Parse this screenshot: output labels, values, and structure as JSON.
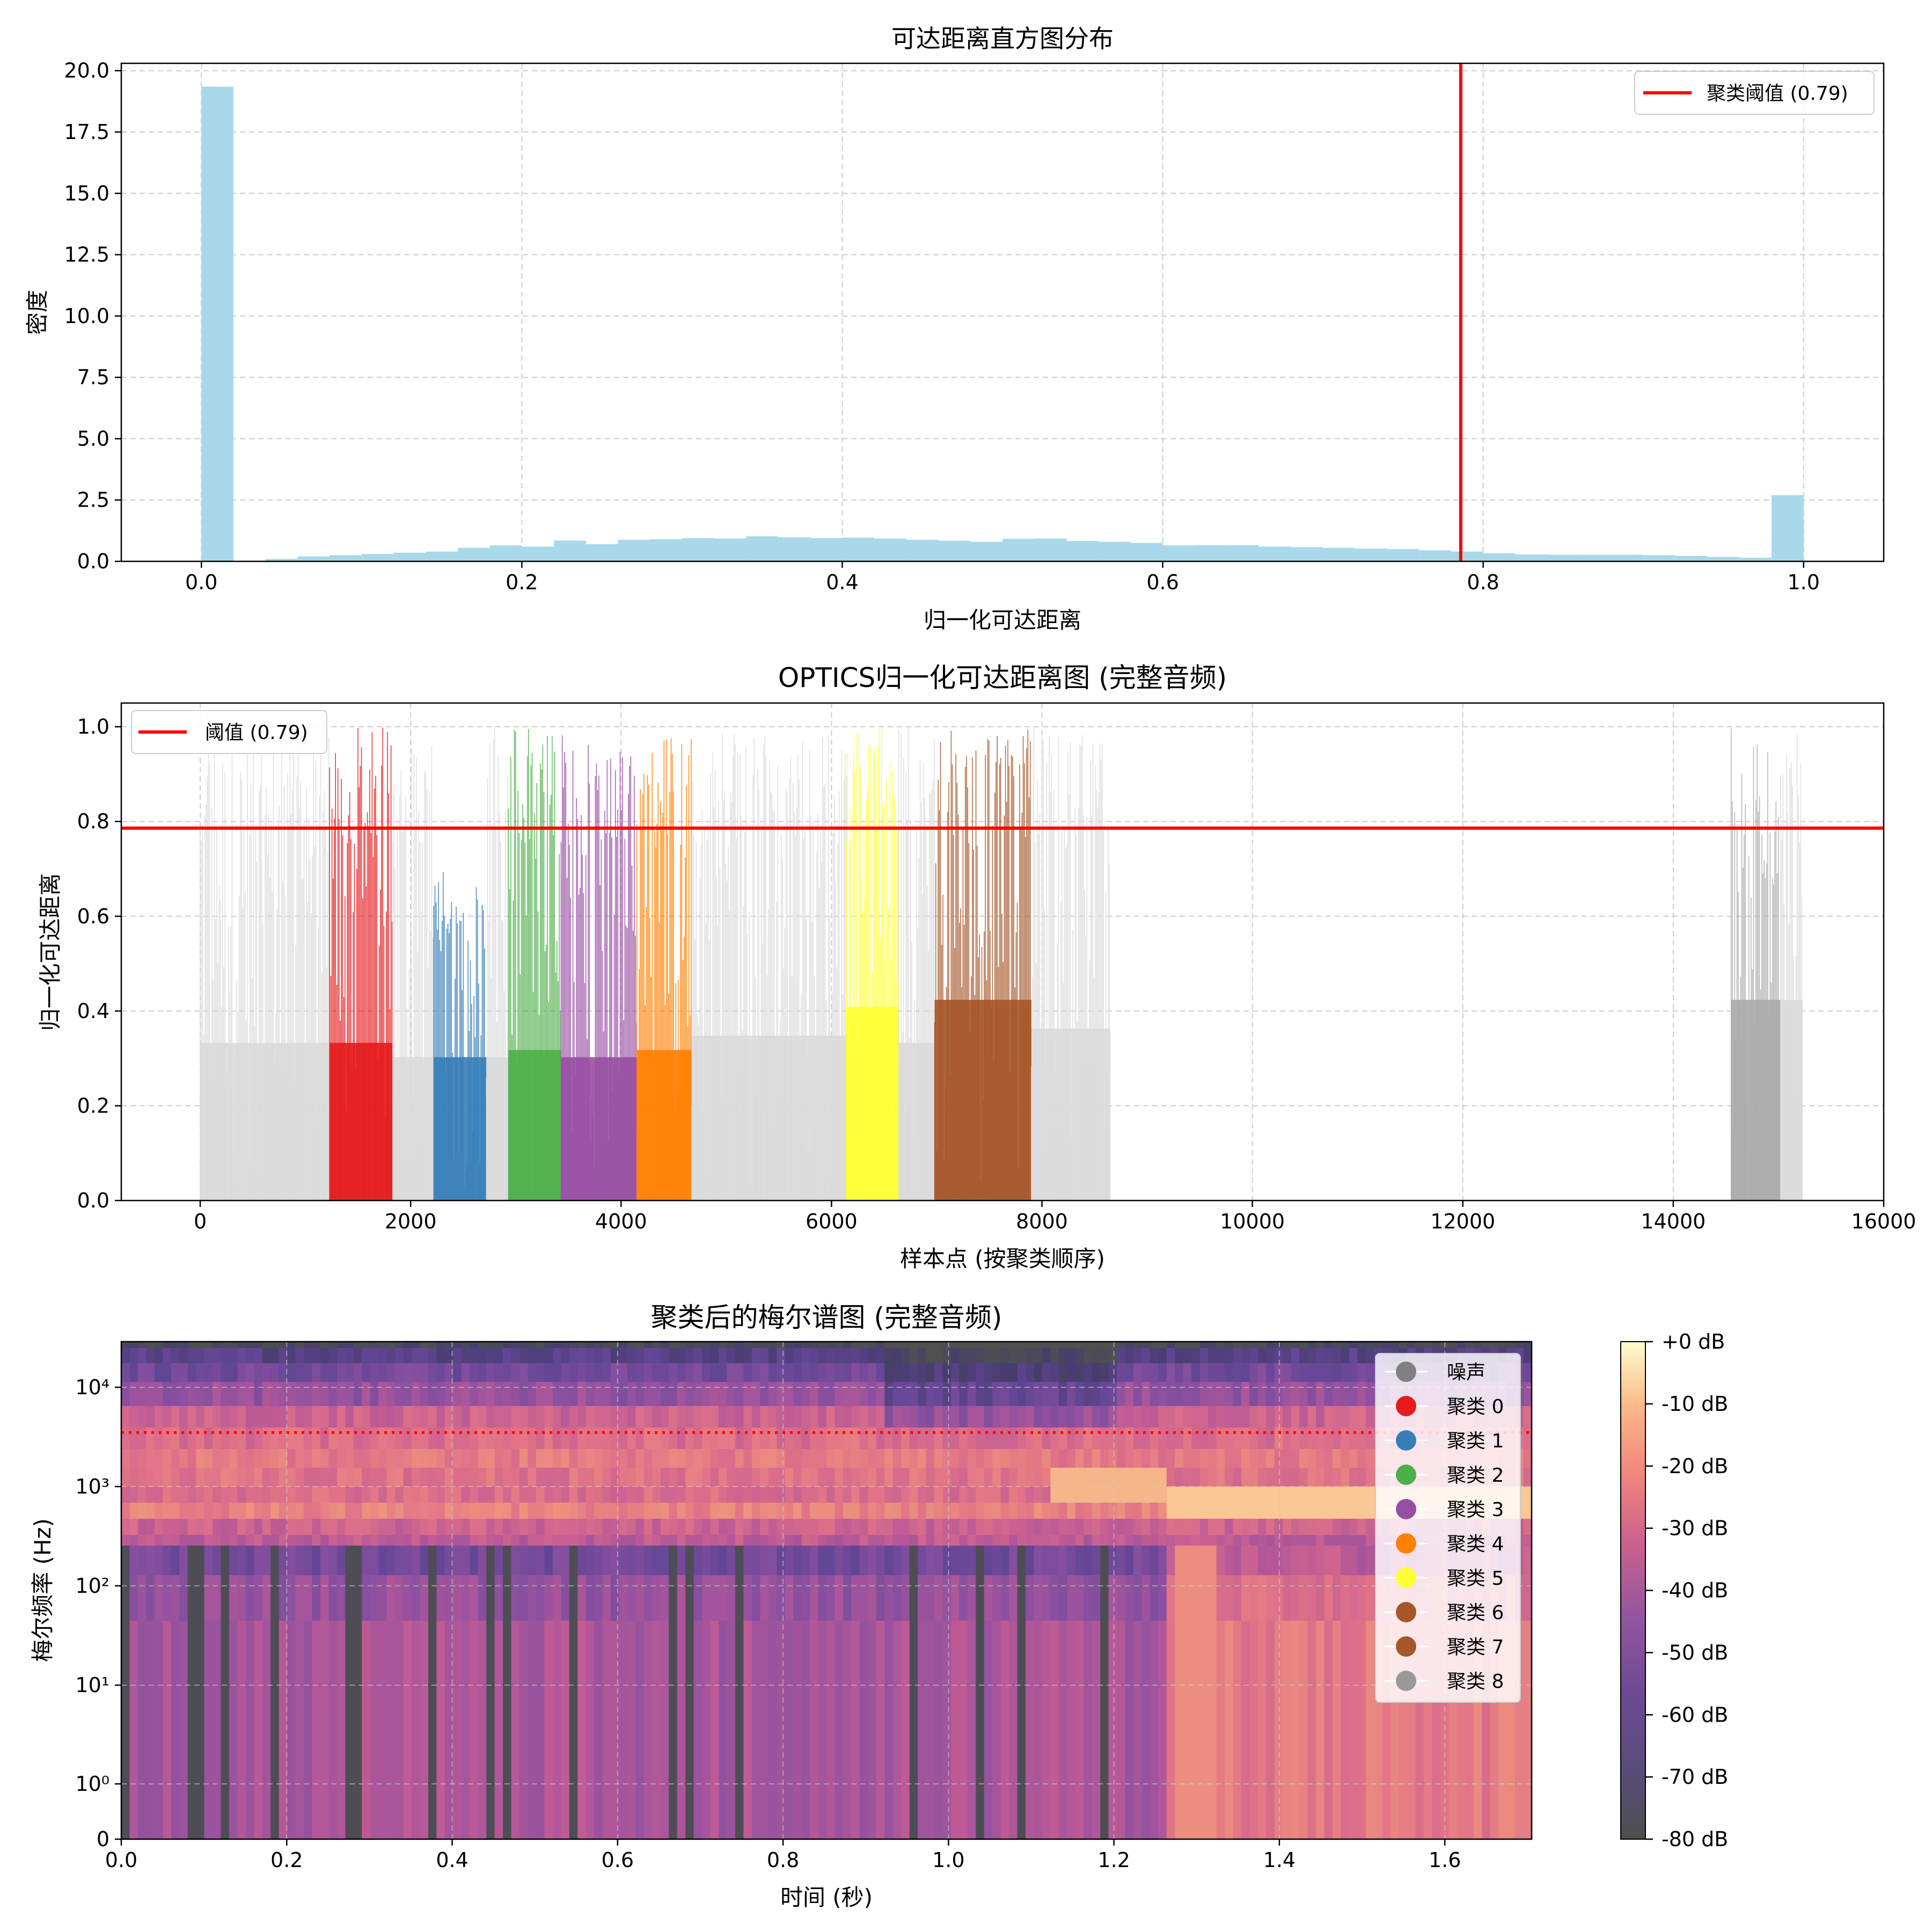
{
  "chart_data": [
    {
      "type": "bar",
      "subtype": "histogram",
      "title": "可达距离直方图分布",
      "xlabel": "归一化可达距离",
      "ylabel": "密度",
      "xlim": [
        -0.05,
        1.05
      ],
      "ylim": [
        0,
        20.3
      ],
      "xticks": [
        0.0,
        0.2,
        0.4,
        0.6,
        0.8,
        1.0
      ],
      "xtick_labels": [
        "0.0",
        "0.2",
        "0.4",
        "0.6",
        "0.8",
        "1.0"
      ],
      "yticks": [
        0,
        2.5,
        5,
        7.5,
        10,
        12.5,
        15,
        17.5,
        20
      ],
      "ytick_labels": [
        "0.0",
        "2.5",
        "5.0",
        "7.5",
        "10.0",
        "12.5",
        "15.0",
        "17.5",
        "20.0"
      ],
      "grid": true,
      "bin_width": 0.02,
      "bar_color": "#a8d8ea",
      "bins_start": [
        0.0,
        0.02,
        0.04,
        0.06,
        0.08,
        0.1,
        0.12,
        0.14,
        0.16,
        0.18,
        0.2,
        0.22,
        0.24,
        0.26,
        0.28,
        0.3,
        0.32,
        0.34,
        0.36,
        0.38,
        0.4,
        0.42,
        0.44,
        0.46,
        0.48,
        0.5,
        0.52,
        0.54,
        0.56,
        0.58,
        0.6,
        0.62,
        0.64,
        0.66,
        0.68,
        0.7,
        0.72,
        0.74,
        0.76,
        0.78,
        0.8,
        0.82,
        0.84,
        0.86,
        0.88,
        0.9,
        0.92,
        0.94,
        0.96,
        0.98
      ],
      "values": [
        19.35,
        0.02,
        0.1,
        0.2,
        0.25,
        0.3,
        0.35,
        0.4,
        0.55,
        0.65,
        0.6,
        0.85,
        0.7,
        0.88,
        0.9,
        0.95,
        0.93,
        1.02,
        0.98,
        0.95,
        0.97,
        0.93,
        0.88,
        0.84,
        0.8,
        0.92,
        0.93,
        0.83,
        0.8,
        0.75,
        0.65,
        0.66,
        0.66,
        0.6,
        0.58,
        0.55,
        0.52,
        0.5,
        0.45,
        0.4,
        0.33,
        0.28,
        0.27,
        0.27,
        0.27,
        0.25,
        0.22,
        0.18,
        0.15,
        2.7
      ],
      "threshold": {
        "x": 0.786,
        "label": "聚类阈值 (0.79)",
        "color": "#ff0000"
      },
      "legend": {
        "entries": [
          "聚类阈值 (0.79)"
        ],
        "position": "upper-right"
      }
    },
    {
      "type": "bar",
      "subtype": "reachability-plot",
      "title": "OPTICS归一化可达距离图 (完整音频)",
      "xlabel": "样本点 (按聚类顺序)",
      "ylabel": "归一化可达距离",
      "xlim": [
        -750,
        16000
      ],
      "ylim": [
        0,
        1.05
      ],
      "xticks": [
        0,
        2000,
        4000,
        6000,
        8000,
        10000,
        12000,
        14000,
        16000
      ],
      "xtick_labels": [
        "0",
        "2000",
        "4000",
        "6000",
        "8000",
        "10000",
        "12000",
        "14000",
        "16000"
      ],
      "yticks": [
        0.0,
        0.2,
        0.4,
        0.6,
        0.8,
        1.0
      ],
      "ytick_labels": [
        "0.0",
        "0.2",
        "0.4",
        "0.6",
        "0.8",
        "1.0"
      ],
      "grid": true,
      "threshold": {
        "y": 0.786,
        "label": "阈值 (0.79)",
        "color": "#ff0000"
      },
      "legend": {
        "entries": [
          "阈值 (0.79)"
        ],
        "position": "upper-left"
      },
      "segments": [
        {
          "label": "噪声",
          "start": 0,
          "end": 1230,
          "color": "#dadada",
          "density": 0.7,
          "high": 1.0
        },
        {
          "label": "聚类 0",
          "start": 1230,
          "end": 1830,
          "color": "#e41a1c",
          "density": 0.7,
          "high": 1.0
        },
        {
          "label": "噪声",
          "start": 1830,
          "end": 2220,
          "color": "#dadada",
          "density": 0.6,
          "high": 0.98
        },
        {
          "label": "聚类 1",
          "start": 2220,
          "end": 2720,
          "color": "#377eb8",
          "density": 0.6,
          "high": 0.7
        },
        {
          "label": "噪声",
          "start": 2720,
          "end": 2930,
          "color": "#dadada",
          "density": 0.6,
          "high": 1.0
        },
        {
          "label": "聚类 2",
          "start": 2930,
          "end": 3430,
          "color": "#4daf4a",
          "density": 0.65,
          "high": 1.0
        },
        {
          "label": "聚类 3",
          "start": 3430,
          "end": 4150,
          "color": "#984ea3",
          "density": 0.6,
          "high": 1.0
        },
        {
          "label": "聚类 4",
          "start": 4150,
          "end": 4670,
          "color": "#ff7f00",
          "density": 0.65,
          "high": 1.0
        },
        {
          "label": "噪声",
          "start": 4670,
          "end": 6140,
          "color": "#dadada",
          "density": 0.75,
          "high": 1.0
        },
        {
          "label": "聚类 5",
          "start": 6140,
          "end": 6640,
          "color": "#ffff33",
          "density": 0.95,
          "high": 1.0
        },
        {
          "label": "噪声",
          "start": 6640,
          "end": 6980,
          "color": "#dadada",
          "density": 0.7,
          "high": 1.0
        },
        {
          "label": "聚类 6",
          "start": 6980,
          "end": 7900,
          "color": "#a65628",
          "density": 1.0,
          "high": 1.0
        },
        {
          "label": "噪声",
          "start": 7900,
          "end": 8650,
          "color": "#dadada",
          "density": 0.8,
          "high": 1.0
        },
        {
          "label": "聚类 8",
          "start": 14550,
          "end": 15020,
          "color": "#aaaaaa",
          "density": 1.0,
          "high": 1.0
        },
        {
          "label": "噪声",
          "start": 15020,
          "end": 15230,
          "color": "#dadada",
          "density": 1.0,
          "high": 1.0
        }
      ]
    },
    {
      "type": "heatmap",
      "subtype": "mel-spectrogram",
      "title": "聚类后的梅尔谱图 (完整音频)",
      "xlabel": "时间 (秒)",
      "ylabel": "梅尔频率 (Hz)",
      "xlim": [
        0,
        1.705
      ],
      "xticks": [
        0.0,
        0.2,
        0.4,
        0.6,
        0.8,
        1.0,
        1.2,
        1.4,
        1.6
      ],
      "xtick_labels": [
        "0.0",
        "0.2",
        "0.4",
        "0.6",
        "0.8",
        "1.0",
        "1.2",
        "1.4",
        "1.6"
      ],
      "yscale": "symlog",
      "ytick_labels": [
        "0",
        "10⁰",
        "10¹",
        "10²",
        "10³",
        "10⁴"
      ],
      "grid": true,
      "cutoff_line_hz": 3500,
      "colorbar": {
        "ticks": [
          "+0 dB",
          "-10 dB",
          "-20 dB",
          "-30 dB",
          "-40 dB",
          "-50 dB",
          "-60 dB",
          "-70 dB",
          "-80 dB"
        ],
        "range_db": [
          -80,
          0
        ]
      },
      "legend": {
        "position": "upper-right",
        "entries": [
          {
            "label": "噪声",
            "color": "#808080"
          },
          {
            "label": "聚类 0",
            "color": "#e41a1c"
          },
          {
            "label": "聚类 1",
            "color": "#377eb8"
          },
          {
            "label": "聚类 2",
            "color": "#4daf4a"
          },
          {
            "label": "聚类 3",
            "color": "#984ea3"
          },
          {
            "label": "聚类 4",
            "color": "#ff7f00"
          },
          {
            "label": "聚类 5",
            "color": "#ffff33"
          },
          {
            "label": "聚类 6",
            "color": "#a65628"
          },
          {
            "label": "聚类 7",
            "color": "#a65628"
          },
          {
            "label": "聚类 8",
            "color": "#999999"
          }
        ]
      }
    }
  ]
}
